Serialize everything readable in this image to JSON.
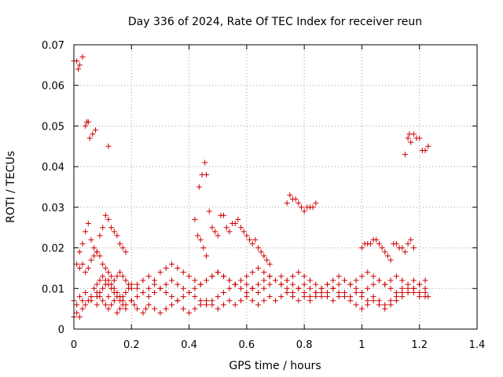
{
  "chart_data": {
    "type": "scatter",
    "title": "Day 336 of 2024, Rate Of TEC Index for receiver reun",
    "xlabel": "GPS time / hours",
    "ylabel": "ROTI / TECUs",
    "xlim": [
      0,
      1.4
    ],
    "ylim": [
      0,
      0.07
    ],
    "x_ticks": [
      "0",
      "0.2",
      "0.4",
      "0.6",
      "0.8",
      "1",
      "1.2",
      "1.4"
    ],
    "y_ticks": [
      "0",
      "0.01",
      "0.02",
      "0.03",
      "0.04",
      "0.05",
      "0.06",
      "0.07"
    ],
    "grid": true,
    "marker": "+",
    "color": "#cc0000",
    "series": [
      {
        "x": [
          0.0,
          0.01,
          0.02,
          0.03,
          0.04,
          0.06,
          0.06,
          0.08,
          0.08,
          0.09,
          0.1,
          0.11,
          0.12,
          0.14,
          0.12,
          0.13,
          0.15,
          0.16,
          0.17,
          0.18,
          0.2,
          0.21,
          0.22,
          0.24,
          0.25,
          0.26,
          0.28,
          0.3,
          0.32,
          0.34,
          0.36,
          0.38,
          0.4,
          0.42,
          0.44,
          0.46,
          0.48,
          0.5,
          0.52,
          0.54,
          0.56,
          0.58,
          0.6,
          0.62,
          0.64,
          0.66,
          0.68,
          0.7,
          0.72,
          0.74,
          0.76,
          0.78,
          0.8,
          0.82,
          0.84,
          0.86,
          0.88,
          0.9,
          0.92,
          0.94,
          0.96,
          0.98,
          1.0,
          1.02,
          1.04,
          1.06,
          1.08,
          1.1,
          1.12,
          1.14,
          1.16,
          1.18,
          1.2,
          1.22,
          1.23
        ],
        "y": [
          0.007,
          0.006,
          0.008,
          0.007,
          0.009,
          0.008,
          0.007,
          0.009,
          0.006,
          0.008,
          0.007,
          0.006,
          0.008,
          0.007,
          0.005,
          0.006,
          0.004,
          0.005,
          0.006,
          0.005,
          0.007,
          0.006,
          0.005,
          0.004,
          0.005,
          0.006,
          0.005,
          0.004,
          0.005,
          0.006,
          0.007,
          0.005,
          0.004,
          0.005,
          0.006,
          0.007,
          0.006,
          0.005,
          0.006,
          0.007,
          0.006,
          0.007,
          0.008,
          0.007,
          0.006,
          0.007,
          0.008,
          0.007,
          0.008,
          0.009,
          0.008,
          0.007,
          0.008,
          0.007,
          0.008,
          0.009,
          0.008,
          0.007,
          0.008,
          0.009,
          0.008,
          0.009,
          0.008,
          0.007,
          0.008,
          0.007,
          0.006,
          0.007,
          0.008,
          0.009,
          0.01,
          0.009,
          0.008,
          0.009,
          0.008
        ]
      },
      {
        "x": [
          0.0,
          0.01,
          0.02,
          0.03,
          0.04,
          0.05,
          0.06,
          0.07,
          0.08,
          0.09,
          0.1,
          0.11,
          0.12,
          0.13,
          0.14,
          0.15,
          0.16,
          0.17,
          0.18,
          0.19,
          0.2,
          0.22,
          0.24,
          0.26,
          0.28,
          0.3,
          0.32,
          0.34,
          0.36,
          0.38,
          0.4,
          0.42,
          0.44,
          0.46,
          0.48,
          0.5,
          0.52,
          0.54,
          0.56,
          0.58,
          0.6,
          0.62,
          0.64,
          0.66,
          0.68,
          0.7,
          0.72,
          0.74,
          0.76,
          0.78,
          0.8,
          0.82,
          0.84,
          0.86,
          0.88,
          0.9,
          0.92,
          0.94,
          0.96,
          0.98,
          1.0,
          1.02,
          1.04,
          1.06,
          1.08,
          1.1,
          1.12,
          1.14,
          1.16,
          1.18,
          1.2,
          1.22
        ],
        "y": [
          0.003,
          0.004,
          0.003,
          0.005,
          0.006,
          0.007,
          0.008,
          0.01,
          0.011,
          0.012,
          0.013,
          0.012,
          0.011,
          0.01,
          0.009,
          0.008,
          0.007,
          0.008,
          0.009,
          0.01,
          0.011,
          0.01,
          0.009,
          0.008,
          0.009,
          0.01,
          0.011,
          0.012,
          0.011,
          0.01,
          0.009,
          0.008,
          0.007,
          0.006,
          0.007,
          0.008,
          0.009,
          0.01,
          0.011,
          0.012,
          0.011,
          0.01,
          0.009,
          0.01,
          0.011,
          0.012,
          0.013,
          0.012,
          0.011,
          0.01,
          0.009,
          0.008,
          0.009,
          0.01,
          0.011,
          0.01,
          0.009,
          0.008,
          0.007,
          0.006,
          0.005,
          0.006,
          0.007,
          0.006,
          0.005,
          0.006,
          0.007,
          0.008,
          0.009,
          0.01,
          0.011,
          0.01
        ]
      },
      {
        "x": [
          0.02,
          0.03,
          0.04,
          0.05,
          0.06,
          0.07,
          0.08,
          0.09,
          0.1,
          0.11,
          0.12,
          0.13,
          0.14,
          0.15,
          0.16,
          0.17,
          0.18,
          0.19,
          0.2,
          0.22,
          0.24,
          0.26,
          0.28,
          0.3,
          0.32,
          0.34,
          0.36,
          0.38,
          0.4,
          0.42,
          0.44,
          0.46,
          0.48,
          0.5,
          0.52,
          0.54,
          0.56,
          0.58,
          0.6,
          0.62,
          0.64,
          0.66,
          0.68,
          0.7,
          0.72,
          0.74,
          0.76,
          0.78,
          0.8,
          0.82,
          0.84,
          0.86,
          0.88,
          0.9,
          0.92,
          0.94,
          0.96,
          0.98,
          1.0,
          1.02,
          1.04,
          1.06,
          1.08,
          1.1,
          1.12,
          1.14,
          1.16,
          1.18,
          1.2,
          1.22
        ],
        "y": [
          0.015,
          0.016,
          0.014,
          0.015,
          0.017,
          0.018,
          0.019,
          0.018,
          0.016,
          0.015,
          0.014,
          0.013,
          0.012,
          0.013,
          0.014,
          0.013,
          0.012,
          0.011,
          0.01,
          0.011,
          0.012,
          0.013,
          0.012,
          0.014,
          0.015,
          0.016,
          0.015,
          0.014,
          0.013,
          0.012,
          0.011,
          0.012,
          0.013,
          0.014,
          0.013,
          0.012,
          0.011,
          0.01,
          0.009,
          0.01,
          0.011,
          0.012,
          0.013,
          0.012,
          0.011,
          0.012,
          0.013,
          0.014,
          0.013,
          0.012,
          0.011,
          0.01,
          0.011,
          0.012,
          0.013,
          0.012,
          0.011,
          0.012,
          0.013,
          0.014,
          0.013,
          0.012,
          0.011,
          0.012,
          0.013,
          0.012,
          0.011,
          0.012,
          0.011,
          0.012
        ]
      },
      {
        "x": [
          0.08,
          0.09,
          0.1,
          0.11,
          0.12,
          0.13,
          0.14,
          0.15,
          0.16,
          0.17,
          0.18,
          0.2,
          0.22,
          0.24,
          0.26,
          0.28,
          0.3,
          0.32,
          0.34,
          0.36,
          0.38,
          0.4,
          0.42,
          0.44,
          0.46,
          0.48,
          0.5,
          0.52,
          0.54,
          0.56,
          0.58,
          0.6,
          0.62,
          0.64,
          0.66,
          0.68,
          0.7,
          0.72,
          0.74,
          0.76,
          0.78,
          0.8,
          0.82,
          0.84,
          0.86,
          0.88,
          0.9,
          0.92,
          0.94,
          0.96,
          0.98,
          1.0,
          1.02,
          1.04,
          1.06,
          1.08,
          1.1,
          1.12,
          1.14,
          1.16,
          1.18,
          1.2,
          1.22
        ],
        "y": [
          0.008,
          0.009,
          0.01,
          0.011,
          0.012,
          0.011,
          0.01,
          0.009,
          0.008,
          0.007,
          0.006,
          0.007,
          0.008,
          0.009,
          0.01,
          0.011,
          0.01,
          0.009,
          0.008,
          0.007,
          0.008,
          0.009,
          0.01,
          0.011,
          0.012,
          0.013,
          0.014,
          0.013,
          0.012,
          0.011,
          0.012,
          0.013,
          0.014,
          0.015,
          0.014,
          0.013,
          0.012,
          0.011,
          0.01,
          0.009,
          0.01,
          0.011,
          0.01,
          0.009,
          0.008,
          0.009,
          0.01,
          0.011,
          0.012,
          0.011,
          0.01,
          0.009,
          0.01,
          0.011,
          0.012,
          0.011,
          0.01,
          0.009,
          0.01,
          0.009,
          0.01,
          0.009,
          0.008
        ]
      },
      {
        "x": [
          0.01,
          0.02,
          0.03,
          0.04,
          0.05,
          0.06,
          0.07,
          0.08,
          0.09,
          0.1,
          0.11,
          0.12,
          0.13,
          0.14,
          0.15,
          0.16,
          0.17,
          0.18,
          0.42,
          0.43,
          0.44,
          0.45,
          0.46,
          0.47,
          0.48,
          0.49,
          0.5,
          0.51,
          0.52,
          0.53,
          0.54,
          0.55,
          0.56,
          0.57,
          0.58,
          0.59,
          0.6,
          0.61,
          0.62,
          0.63,
          0.64,
          0.65,
          0.66,
          0.67,
          0.68,
          0.74,
          0.75,
          0.76,
          0.77,
          0.78,
          0.79,
          0.8,
          0.81,
          0.82,
          0.83,
          0.84,
          1.0,
          1.01,
          1.02,
          1.03,
          1.04,
          1.05,
          1.06,
          1.07,
          1.08,
          1.09,
          1.1,
          1.11,
          1.12,
          1.13,
          1.14,
          1.15,
          1.16,
          1.17,
          1.18
        ],
        "y": [
          0.016,
          0.019,
          0.021,
          0.024,
          0.026,
          0.022,
          0.02,
          0.019,
          0.023,
          0.025,
          0.028,
          0.027,
          0.025,
          0.024,
          0.023,
          0.021,
          0.02,
          0.019,
          0.027,
          0.023,
          0.022,
          0.02,
          0.018,
          0.029,
          0.025,
          0.024,
          0.023,
          0.028,
          0.028,
          0.025,
          0.024,
          0.026,
          0.026,
          0.027,
          0.025,
          0.024,
          0.023,
          0.022,
          0.021,
          0.022,
          0.02,
          0.019,
          0.018,
          0.017,
          0.016,
          0.031,
          0.033,
          0.032,
          0.032,
          0.031,
          0.03,
          0.029,
          0.03,
          0.03,
          0.03,
          0.031,
          0.02,
          0.021,
          0.021,
          0.021,
          0.022,
          0.022,
          0.021,
          0.02,
          0.019,
          0.018,
          0.017,
          0.021,
          0.021,
          0.02,
          0.02,
          0.019,
          0.021,
          0.022,
          0.02
        ]
      },
      {
        "x": [
          0.0,
          0.01,
          0.015,
          0.02,
          0.03,
          0.04,
          0.045,
          0.05,
          0.055,
          0.065,
          0.075,
          0.12,
          0.435,
          0.445,
          0.455,
          0.46,
          1.15,
          1.16,
          1.165,
          1.17,
          1.18,
          1.19,
          1.2,
          1.21,
          1.22,
          1.23
        ],
        "y": [
          0.066,
          0.066,
          0.064,
          0.065,
          0.067,
          0.05,
          0.051,
          0.051,
          0.047,
          0.048,
          0.049,
          0.045,
          0.035,
          0.038,
          0.041,
          0.038,
          0.043,
          0.047,
          0.048,
          0.046,
          0.048,
          0.047,
          0.047,
          0.044,
          0.044,
          0.045
        ]
      }
    ]
  }
}
